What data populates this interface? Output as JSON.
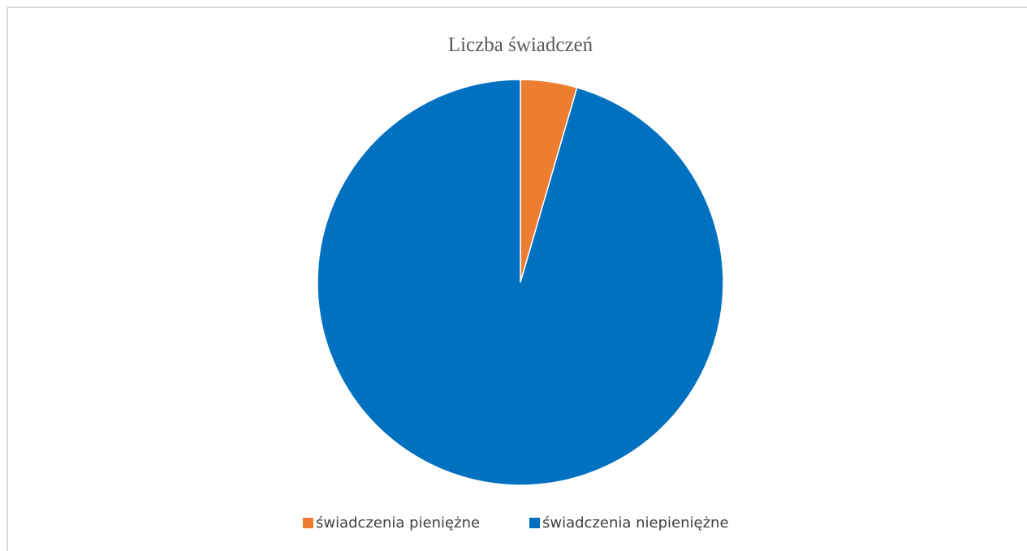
{
  "chart_data": {
    "type": "pie",
    "title": "Liczba świadczeń",
    "categories": [
      "świadczenia pieniężne",
      "świadczenia niepieniężne"
    ],
    "values": [
      4.5,
      95.5
    ],
    "colors": [
      "#ED7D31",
      "#0070C0"
    ],
    "start_angle_deg": 0,
    "direction": "clockwise",
    "legend_position": "bottom"
  }
}
